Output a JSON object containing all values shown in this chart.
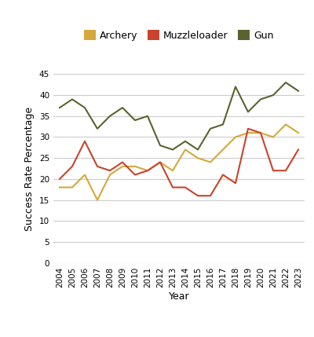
{
  "years": [
    2004,
    2005,
    2006,
    2007,
    2008,
    2009,
    2010,
    2011,
    2012,
    2013,
    2014,
    2015,
    2016,
    2017,
    2018,
    2019,
    2020,
    2021,
    2022,
    2023
  ],
  "archery": [
    18,
    18,
    21,
    15,
    21,
    23,
    23,
    22,
    24,
    22,
    27,
    25,
    24,
    27,
    30,
    31,
    31,
    30,
    33,
    31
  ],
  "muzzleloader": [
    20,
    23,
    29,
    23,
    22,
    24,
    21,
    22,
    24,
    18,
    18,
    16,
    16,
    21,
    19,
    32,
    31,
    22,
    22,
    27
  ],
  "gun": [
    37,
    39,
    37,
    32,
    35,
    37,
    34,
    35,
    28,
    27,
    29,
    27,
    32,
    33,
    42,
    36,
    39,
    40,
    43,
    41
  ],
  "archery_color": "#D4A83A",
  "muzzleloader_color": "#C9432C",
  "gun_color": "#5A6330",
  "xlabel": "Year",
  "ylabel": "Success Rate Percentage",
  "ylim": [
    0,
    45
  ],
  "yticks": [
    0,
    5,
    10,
    15,
    20,
    25,
    30,
    35,
    40,
    45
  ],
  "legend_labels": [
    "Archery",
    "Muzzleloader",
    "Gun"
  ],
  "bg_color": "#ffffff",
  "grid_color": "#cccccc",
  "linewidth": 1.5,
  "tick_fontsize": 7.5,
  "label_fontsize": 9,
  "legend_fontsize": 9
}
